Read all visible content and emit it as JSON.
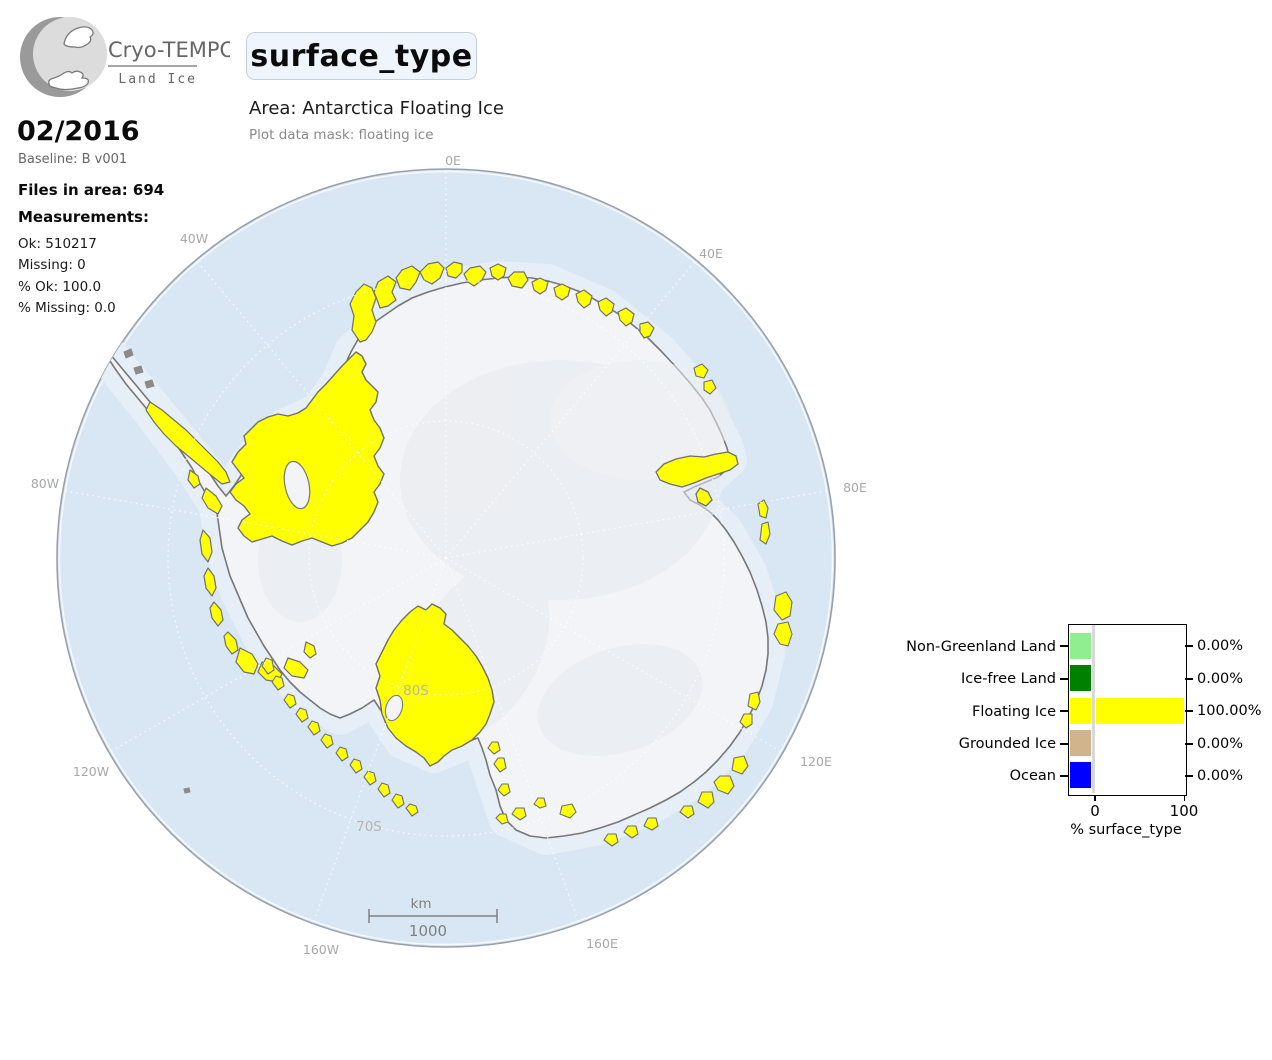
{
  "header": {
    "brand_name": "Cryo-TEMPO",
    "brand_subtitle": "Land Ice",
    "title": "surface_type",
    "area_label": "Area: Antarctica Floating Ice",
    "mask_label": "Plot data mask: floating ice"
  },
  "info": {
    "date": "02/2016",
    "baseline": "Baseline: B v001",
    "files_in_area": "Files in area: 694",
    "measurements_heading": "Measurements:",
    "stats": [
      "Ok: 510217",
      "Missing: 0",
      "% Ok: 100.0",
      "% Missing: 0.0"
    ]
  },
  "map": {
    "meridian_labels": [
      "0E",
      "40E",
      "80E",
      "120E",
      "160E",
      "160W",
      "120W",
      "80W",
      "40W"
    ],
    "latitude_labels": [
      "80S",
      "70S"
    ],
    "scale_bar": {
      "unit": "km",
      "length_label": "1000"
    },
    "colors": {
      "ocean": "#d9e6f3",
      "coastal_water": "#e6eff7",
      "land": "#f2f4f7",
      "land_shade": "#e7eaef",
      "floating_ice": "#ffff00",
      "coastline": "#777777",
      "rock": "#8a8a8a",
      "graticule": "#ffffff",
      "grid_label": "#a8a8a8",
      "lat_label": "#b5b5ad"
    }
  },
  "chart_data": {
    "type": "bar",
    "orientation": "horizontal",
    "title": "",
    "categories": [
      "Non-Greenland Land",
      "Ice-free Land",
      "Floating Ice",
      "Grounded Ice",
      "Ocean"
    ],
    "values": [
      0.0,
      0.0,
      100.0,
      0.0,
      0.0
    ],
    "value_labels": [
      "0.00%",
      "0.00%",
      "100.00%",
      "0.00%",
      "0.00%"
    ],
    "colors": [
      "#90ee90",
      "#008000",
      "#ffff00",
      "#d2b48c",
      "#0000ff"
    ],
    "xlabel": "% surface_type",
    "xlim": [
      0,
      100
    ],
    "xtick_labels": [
      "0",
      "100"
    ],
    "grid": false,
    "legend_position": "right-of-map"
  }
}
